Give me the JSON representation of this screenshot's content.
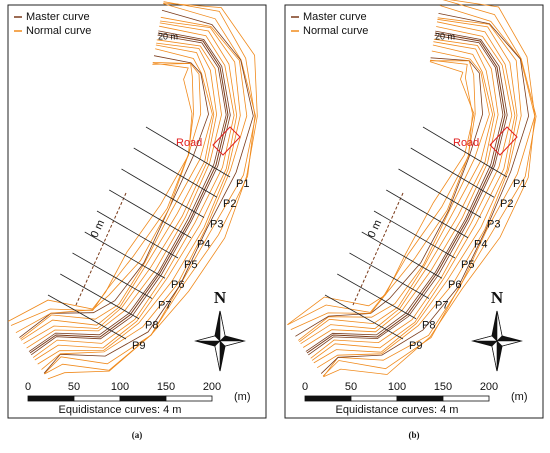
{
  "panels": [
    {
      "legend": [
        "Master curve",
        "Normal curve"
      ],
      "contour_label": "20 m",
      "road_label": "Road",
      "axis_label": "0 m",
      "profiles": [
        "P1",
        "P2",
        "P3",
        "P4",
        "P5",
        "P6",
        "P7",
        "P8",
        "P9"
      ],
      "north": "N",
      "scale_ticks": [
        "0",
        "50",
        "100",
        "150",
        "200"
      ],
      "scale_unit": "(m)",
      "note": "Equidistance curves: 4 m",
      "caption": "(a)"
    },
    {
      "legend": [
        "Master curve",
        "Normal curve"
      ],
      "contour_label": "20 m",
      "road_label": "Road",
      "axis_label": "0 m",
      "profiles": [
        "P1",
        "P2",
        "P3",
        "P4",
        "P5",
        "P6",
        "P7",
        "P8",
        "P9"
      ],
      "north": "N",
      "scale_ticks": [
        "0",
        "50",
        "100",
        "150",
        "200"
      ],
      "scale_unit": "(m)",
      "note": "Equidistance curves: 4 m",
      "caption": "(b)"
    }
  ]
}
